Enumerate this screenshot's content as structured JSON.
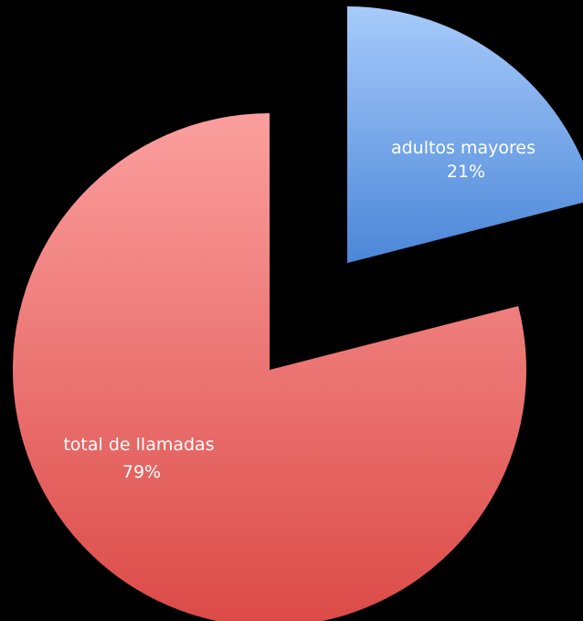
{
  "chart_data": {
    "type": "pie",
    "title": "",
    "slices": [
      {
        "label": "adultos mayores",
        "percent_text": "21%",
        "value": 21,
        "color_light": "#a7cbfb",
        "color_dark": "#4b86d8",
        "exploded": true
      },
      {
        "label": "total de llamadas",
        "percent_text": "79%",
        "value": 79,
        "color_light": "#fb9f9e",
        "color_dark": "#db4a47",
        "exploded": false
      }
    ],
    "start_angle_deg": 0,
    "direction": "clockwise",
    "legend": "none"
  }
}
